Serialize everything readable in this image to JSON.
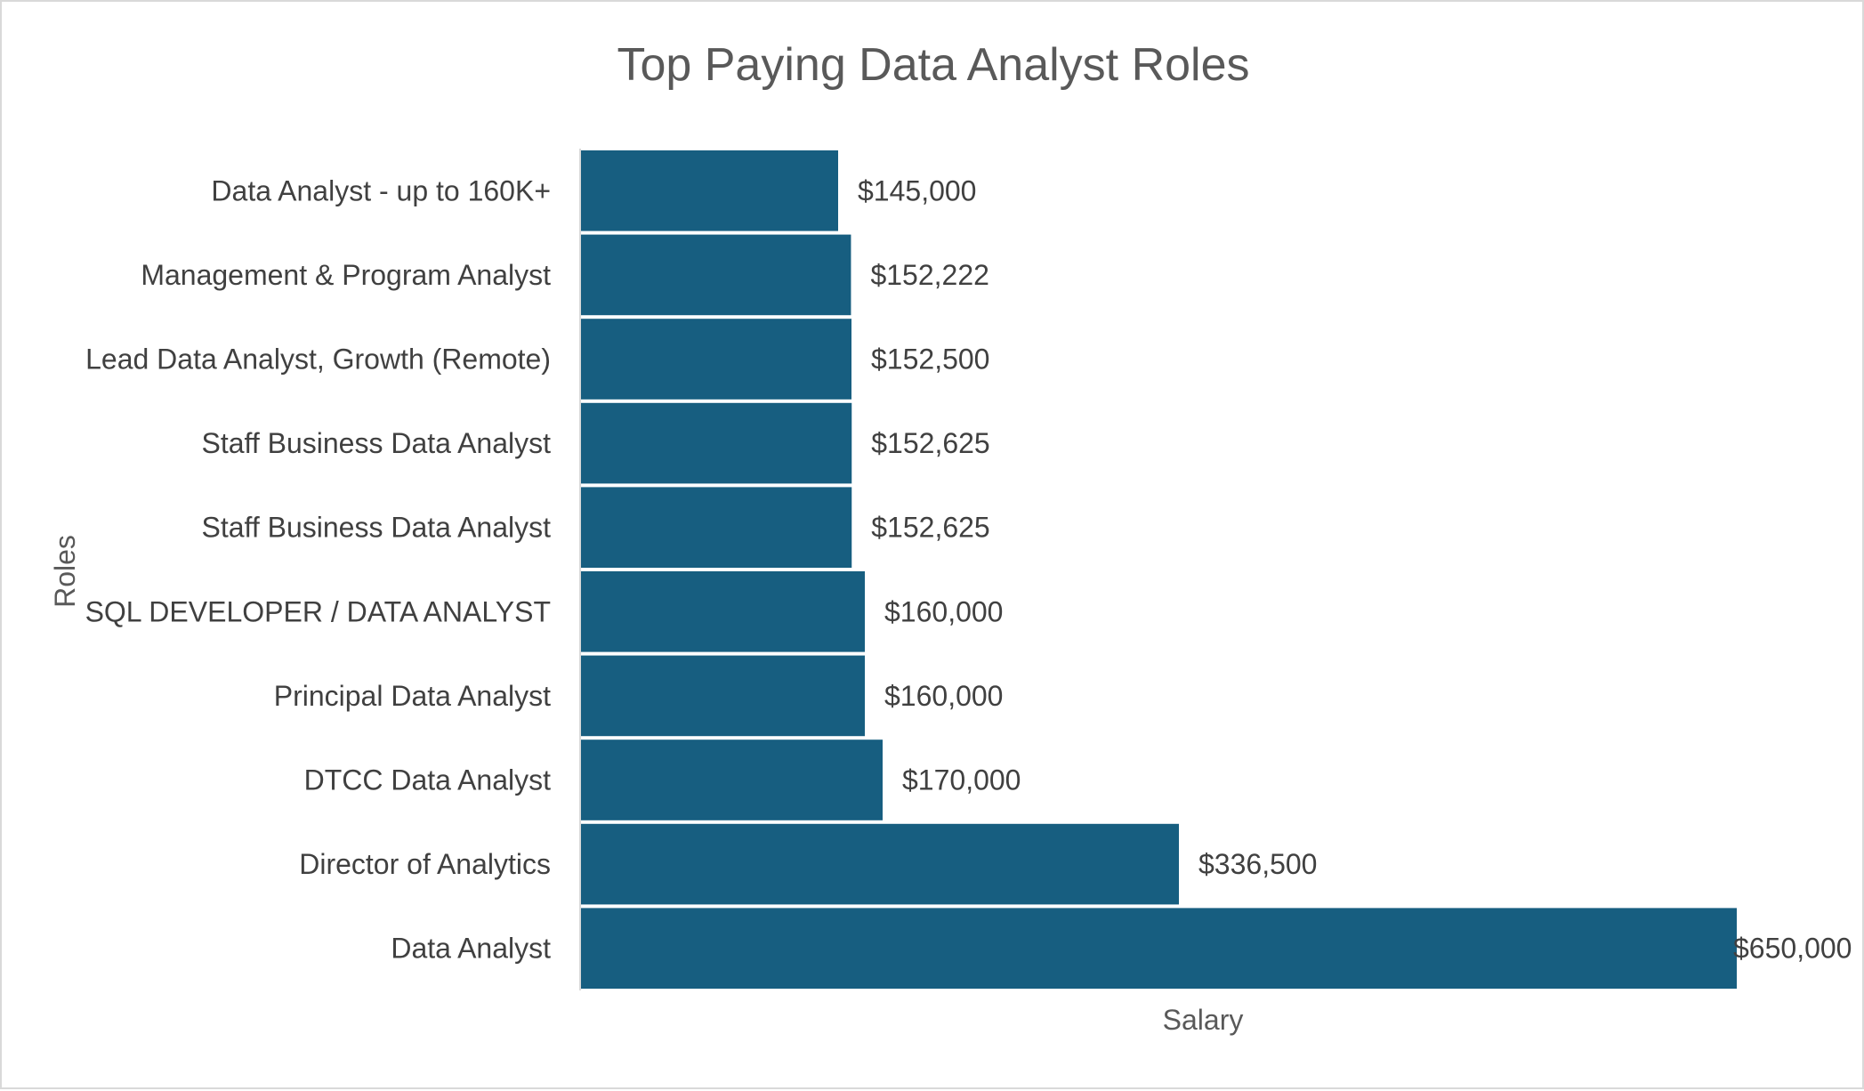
{
  "chart_data": {
    "type": "bar",
    "orientation": "horizontal",
    "title": "Top Paying Data Analyst Roles",
    "xlabel": "Salary",
    "ylabel": "Roles",
    "categories": [
      "Data Analyst - up to 160K+",
      "Management & Program Analyst",
      "Lead Data Analyst, Growth (Remote)",
      "Staff Business Data Analyst",
      "Staff Business Data Analyst",
      "SQL DEVELOPER / DATA ANALYST",
      "Principal Data Analyst",
      "DTCC Data Analyst",
      "Director of Analytics",
      "Data Analyst"
    ],
    "values": [
      145000,
      152222,
      152500,
      152625,
      152625,
      160000,
      160000,
      170000,
      336500,
      650000
    ],
    "data_labels": [
      "$145,000",
      "$152,222",
      "$152,500",
      "$152,625",
      "$152,625",
      "$160,000",
      "$160,000",
      "$170,000",
      "$336,500",
      "$650,000"
    ],
    "xlim": [
      0,
      650000
    ],
    "grid": false,
    "legend": "none",
    "bar_color": "#175e80"
  }
}
